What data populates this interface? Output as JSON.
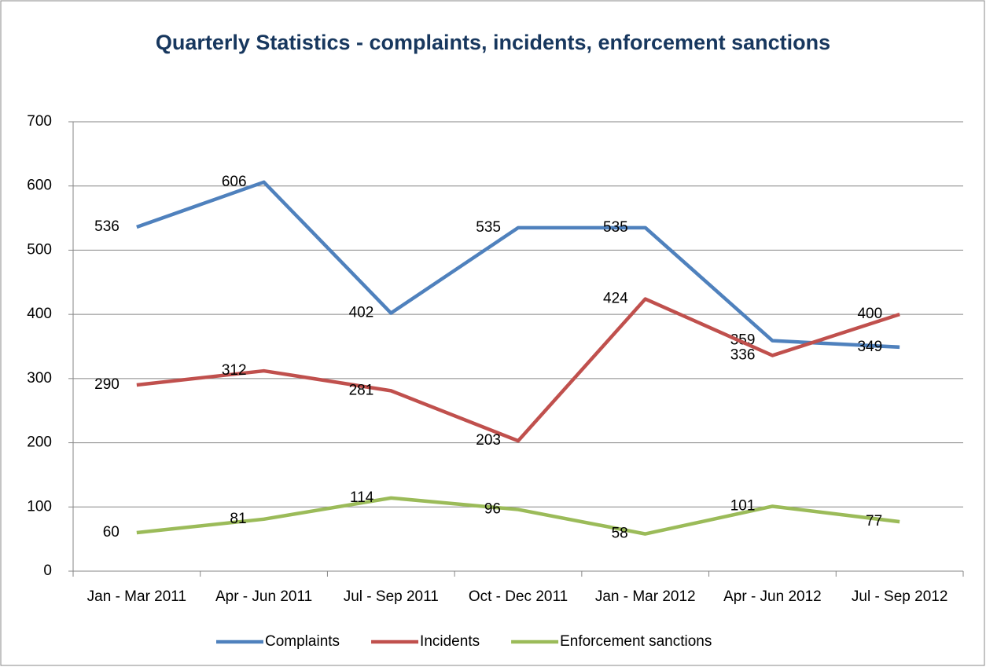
{
  "chart_data": {
    "type": "line",
    "title": "Quarterly Statistics - complaints, incidents, enforcement sanctions",
    "categories": [
      "Jan - Mar 2011",
      "Apr - Jun 2011",
      "Jul - Sep 2011",
      "Oct - Dec 2011",
      "Jan - Mar 2012",
      "Apr - Jun 2012",
      "Jul - Sep 2012"
    ],
    "series": [
      {
        "name": "Complaints",
        "color": "#4f81bd",
        "values": [
          536,
          606,
          402,
          535,
          535,
          359,
          349
        ]
      },
      {
        "name": "Incidents",
        "color": "#c0504d",
        "values": [
          290,
          312,
          281,
          203,
          424,
          336,
          400
        ]
      },
      {
        "name": "Enforcement sanctions",
        "color": "#9bbb59",
        "values": [
          60,
          81,
          114,
          96,
          58,
          101,
          77
        ]
      }
    ],
    "ylim": [
      0,
      700
    ],
    "yticks": [
      0,
      100,
      200,
      300,
      400,
      500,
      600,
      700
    ],
    "grid": true,
    "legend": "bottom"
  }
}
